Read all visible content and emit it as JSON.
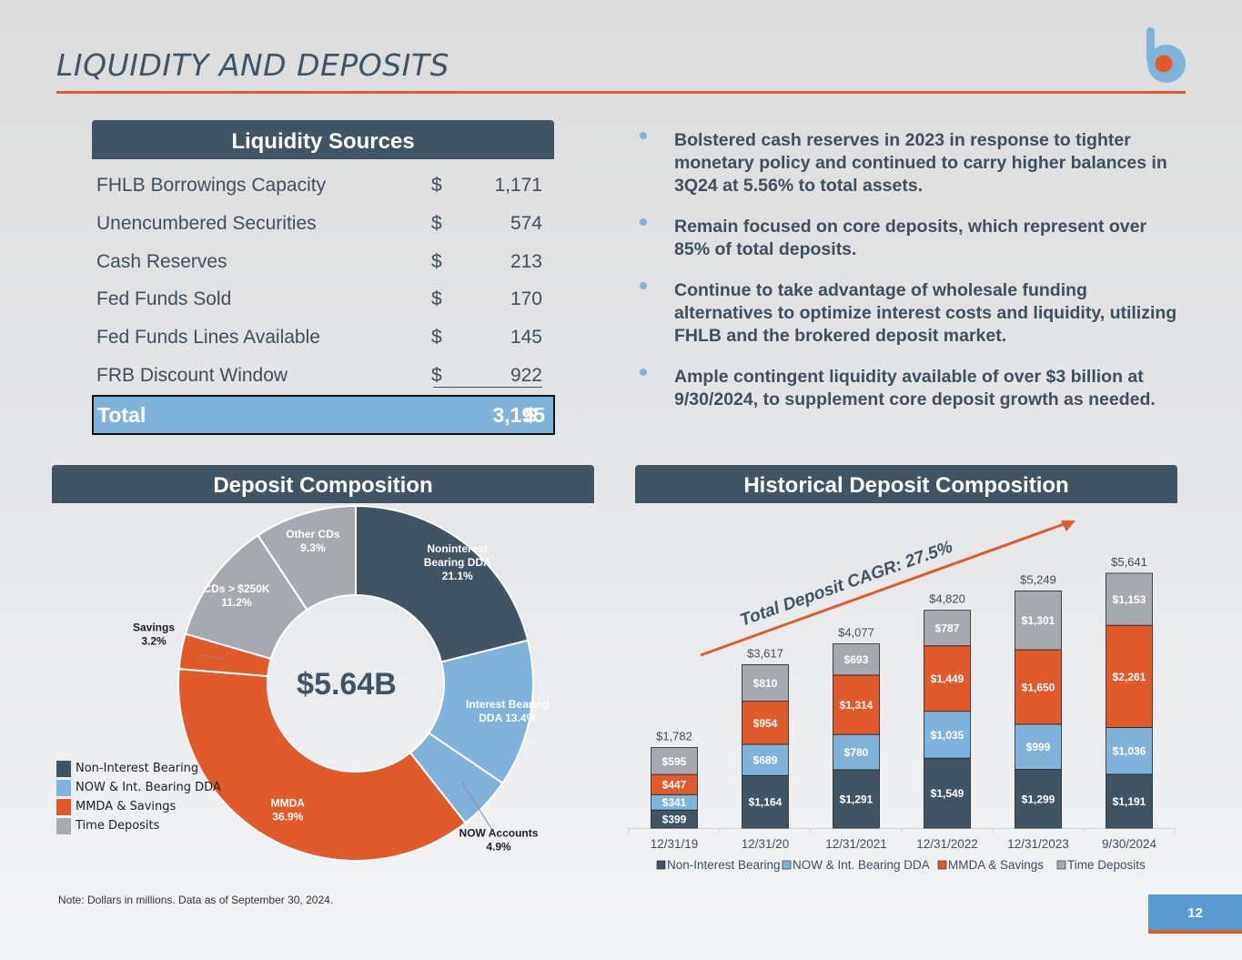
{
  "page": {
    "title": "LIQUIDITY AND DEPOSITS",
    "note": "Note: Dollars in millions. Data as of September 30, 2024.",
    "page_number": "12"
  },
  "colors": {
    "dark": "#405464",
    "light_blue": "#7fb3da",
    "orange": "#e05a2b",
    "gray": "#a6aab0",
    "accent_rule": "#e05a2b"
  },
  "liquidity": {
    "header": "Liquidity Sources",
    "rows": [
      {
        "label": "FHLB Borrowings Capacity",
        "currency": "$",
        "value": "1,171"
      },
      {
        "label": "Unencumbered Securities",
        "currency": "$",
        "value": "574"
      },
      {
        "label": "Cash Reserves",
        "currency": "$",
        "value": "213"
      },
      {
        "label": "Fed Funds Sold",
        "currency": "$",
        "value": "170"
      },
      {
        "label": "Fed Funds Lines Available",
        "currency": "$",
        "value": "145"
      },
      {
        "label": "FRB Discount Window",
        "currency": "$",
        "value": "922"
      }
    ],
    "total": {
      "label": "Total",
      "currency": "$",
      "value": "3,195"
    }
  },
  "bullets": [
    "Bolstered cash reserves in 2023 in response to tighter monetary policy and continued to carry higher balances in 3Q24 at 5.56% to total assets.",
    "Remain focused on core deposits, which represent over 85% of total deposits.",
    "Continue to take advantage of wholesale funding alternatives to optimize interest costs and liquidity, utilizing FHLB and the brokered deposit market.",
    "Ample contingent liquidity available of over $3 billion at 9/30/2024, to supplement core deposit growth as needed."
  ],
  "chart_data": [
    {
      "type": "pie",
      "title": "Deposit Composition",
      "center_label": "$5.64B",
      "slices": [
        {
          "label_lines": [
            "Noninterest",
            "Bearing DDA"
          ],
          "pct_label": "21.1%",
          "value": 21.1,
          "color": "#405464"
        },
        {
          "label_lines": [
            "Interest Bearing",
            "DDA"
          ],
          "pct_label": "13.4%",
          "value": 13.4,
          "color": "#7fb3da"
        },
        {
          "label_lines": [
            "NOW Accounts"
          ],
          "pct_label": "4.9%",
          "value": 4.9,
          "color": "#7fb3da"
        },
        {
          "label_lines": [
            "MMDA"
          ],
          "pct_label": "36.9%",
          "value": 36.9,
          "color": "#e05a2b"
        },
        {
          "label_lines": [
            "Savings"
          ],
          "pct_label": "3.2%",
          "value": 3.2,
          "color": "#e05a2b"
        },
        {
          "label_lines": [
            "CDs > $250K"
          ],
          "pct_label": "11.2%",
          "value": 11.2,
          "color": "#a6aab0"
        },
        {
          "label_lines": [
            "Other CDs"
          ],
          "pct_label": "9.3%",
          "value": 9.3,
          "color": "#a6aab0"
        }
      ],
      "legend": [
        {
          "label": "Non-Interest Bearing",
          "color": "#405464"
        },
        {
          "label": "NOW & Int. Bearing DDA",
          "color": "#7fb3da"
        },
        {
          "label": "MMDA & Savings",
          "color": "#e05a2b"
        },
        {
          "label": "Time Deposits",
          "color": "#a6aab0"
        }
      ],
      "legend_position": "left"
    },
    {
      "type": "bar",
      "stacked": true,
      "title": "Historical Deposit Composition",
      "annotation": "Total Deposit CAGR: 27.5%",
      "categories": [
        "12/31/19",
        "12/31/20",
        "12/31/2021",
        "12/31/2022",
        "12/31/2023",
        "9/30/2024"
      ],
      "series": [
        {
          "name": "Non-Interest Bearing",
          "color": "#405464",
          "values": [
            399,
            1164,
            1291,
            1549,
            1299,
            1191
          ],
          "labels": [
            "$399",
            "$1,164",
            "$1,291",
            "$1,549",
            "$1,299",
            "$1,191"
          ]
        },
        {
          "name": "NOW & Int. Bearing DDA",
          "color": "#7fb3da",
          "values": [
            341,
            689,
            780,
            1035,
            999,
            1036
          ],
          "labels": [
            "$341",
            "$689",
            "$780",
            "$1,035",
            "$999",
            "$1,036"
          ]
        },
        {
          "name": "MMDA & Savings",
          "color": "#e05a2b",
          "values": [
            447,
            954,
            1314,
            1449,
            1650,
            2261
          ],
          "labels": [
            "$447",
            "$954",
            "$1,314",
            "$1,449",
            "$1,650",
            "$2,261"
          ]
        },
        {
          "name": "Time Deposits",
          "color": "#a6aab0",
          "values": [
            595,
            810,
            693,
            787,
            1301,
            1153
          ],
          "labels": [
            "$595",
            "$810",
            "$693",
            "$787",
            "$1,301",
            "$1,153"
          ]
        }
      ],
      "totals": [
        "$1,782",
        "$3,617",
        "$4,077",
        "$4,820",
        "$5,249",
        "$5,641"
      ],
      "ylim": [
        0,
        5700
      ],
      "legend_position": "bottom"
    }
  ]
}
